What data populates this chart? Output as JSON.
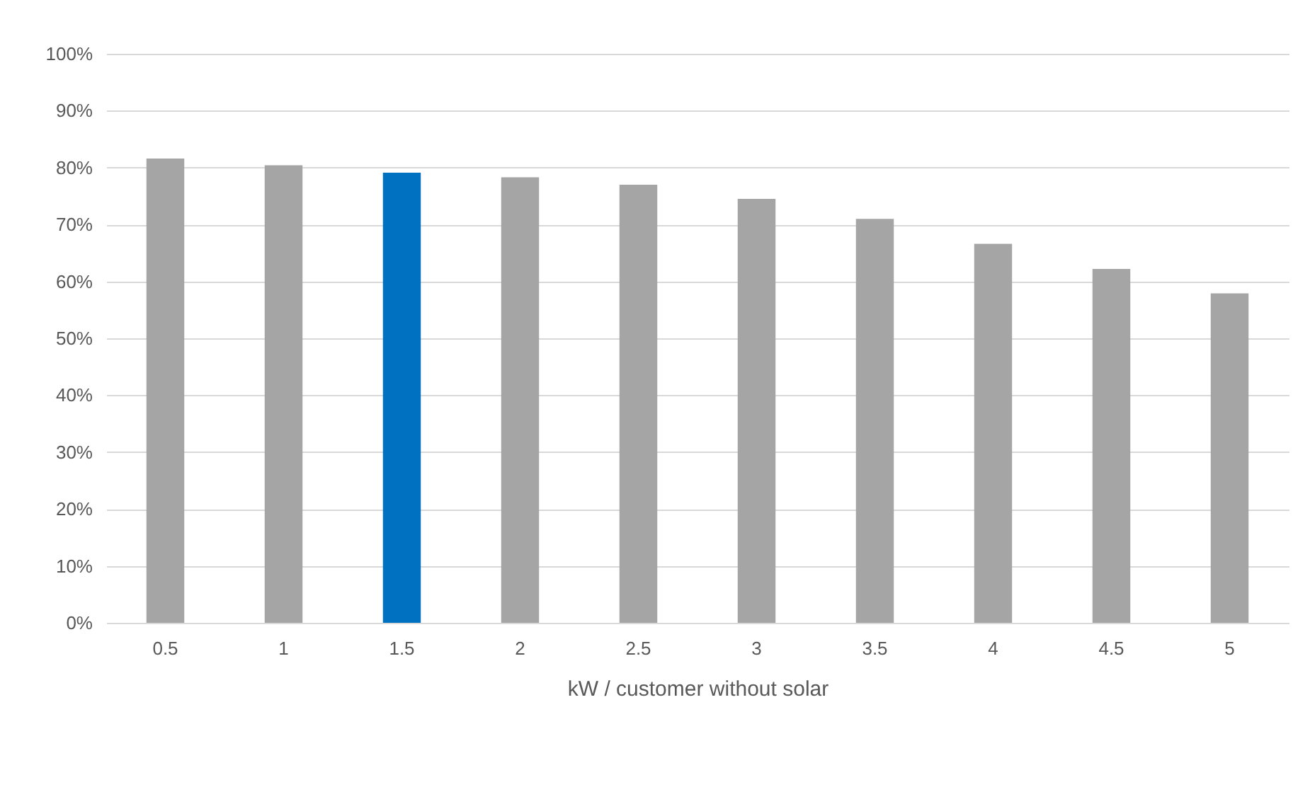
{
  "chart_data": {
    "type": "bar",
    "xlabel": "kW / customer without solar",
    "categories": [
      "0.5",
      "1",
      "1.5",
      "2",
      "2.5",
      "3",
      "3.5",
      "4",
      "4.5",
      "5"
    ],
    "values": [
      81.6,
      80.4,
      79.1,
      78.3,
      77.0,
      74.5,
      71.0,
      66.6,
      62.2,
      57.9
    ],
    "colors": [
      "#a5a5a5",
      "#a5a5a5",
      "#0070c0",
      "#a5a5a5",
      "#a5a5a5",
      "#a5a5a5",
      "#a5a5a5",
      "#a5a5a5",
      "#a5a5a5",
      "#a5a5a5"
    ],
    "ylim": [
      0,
      100
    ],
    "yticks": [
      {
        "value": 0,
        "label": "0%"
      },
      {
        "value": 10,
        "label": "10%"
      },
      {
        "value": 20,
        "label": "20%"
      },
      {
        "value": 30,
        "label": "30%"
      },
      {
        "value": 40,
        "label": "40%"
      },
      {
        "value": 50,
        "label": "50%"
      },
      {
        "value": 60,
        "label": "60%"
      },
      {
        "value": 70,
        "label": "70%"
      },
      {
        "value": 80,
        "label": "80%"
      },
      {
        "value": 90,
        "label": "90%"
      },
      {
        "value": 100,
        "label": "100%"
      }
    ],
    "grid": "y"
  }
}
